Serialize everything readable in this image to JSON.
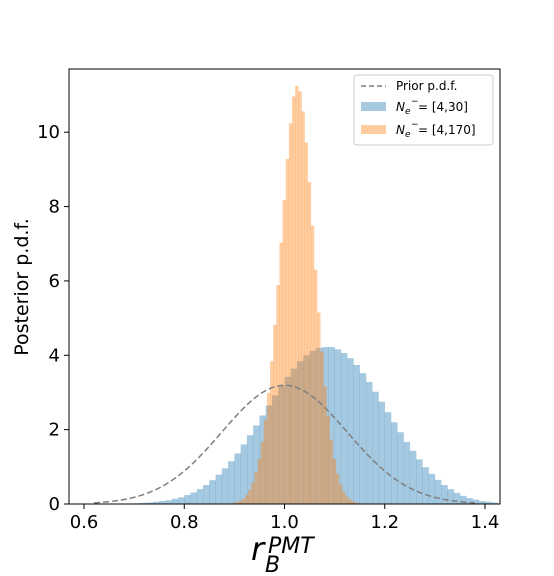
{
  "chart_data": {
    "type": "histogram",
    "xlabel": "r_B^PMT",
    "xlabel_main": "r",
    "xlabel_sub": "B",
    "xlabel_sup": "PMT",
    "ylabel": "Posterior p.d.f.",
    "xlim": [
      0.57,
      1.43
    ],
    "ylim": [
      0,
      11.7
    ],
    "xticks": [
      0.6,
      0.8,
      1.0,
      1.2,
      1.4
    ],
    "xtick_labels": [
      "0.6",
      "0.8",
      "1.0",
      "1.2",
      "1.4"
    ],
    "yticks": [
      0,
      2,
      4,
      6,
      8,
      10
    ],
    "ytick_labels": [
      "0",
      "2",
      "4",
      "6",
      "8",
      "10"
    ],
    "grid": false,
    "legend_placement": "top-right",
    "legend": {
      "prior_label": "Prior p.d.f.",
      "series_a_prefix": "N",
      "series_a_sub": "e",
      "series_a_sup": "−",
      "series_a_range": " = [4,30]",
      "series_b_prefix": "N",
      "series_b_sub": "e",
      "series_b_sup": "−",
      "series_b_range": " = [4,170]"
    },
    "series": [
      {
        "name": "N_e- = [4,30]",
        "kind": "histogram",
        "color": "#1f77b4",
        "opacity": 0.4,
        "bin_width": 0.0125,
        "bin_start": 0.7,
        "values": [
          0.02,
          0.03,
          0.04,
          0.06,
          0.08,
          0.1,
          0.14,
          0.18,
          0.24,
          0.31,
          0.4,
          0.51,
          0.64,
          0.79,
          0.96,
          1.15,
          1.36,
          1.6,
          1.85,
          2.11,
          2.38,
          2.65,
          2.92,
          3.18,
          3.42,
          3.64,
          3.84,
          4.0,
          4.12,
          4.2,
          4.22,
          4.22,
          4.16,
          4.06,
          3.92,
          3.74,
          3.52,
          3.28,
          3.02,
          2.75,
          2.47,
          2.2,
          1.93,
          1.67,
          1.43,
          1.2,
          0.99,
          0.81,
          0.65,
          0.51,
          0.4,
          0.3,
          0.22,
          0.16,
          0.12,
          0.08,
          0.06,
          0.04
        ]
      },
      {
        "name": "N_e- = [4,170]",
        "kind": "histogram",
        "color": "#ff7f0e",
        "opacity": 0.4,
        "bin_width": 0.00625,
        "bin_start": 0.89,
        "values": [
          0.02,
          0.03,
          0.05,
          0.09,
          0.15,
          0.24,
          0.38,
          0.58,
          0.85,
          1.21,
          1.68,
          2.27,
          2.99,
          3.84,
          4.82,
          5.89,
          7.03,
          8.18,
          9.28,
          10.24,
          10.96,
          11.25,
          11.1,
          10.56,
          9.72,
          8.66,
          7.49,
          6.3,
          5.15,
          4.1,
          3.17,
          2.38,
          1.73,
          1.21,
          0.82,
          0.53,
          0.33,
          0.2,
          0.12,
          0.07,
          0.04,
          0.02
        ]
      },
      {
        "name": "Prior p.d.f.",
        "kind": "line",
        "style": "dashed",
        "color": "#7f7f7f",
        "mean": 1.0,
        "sigma": 0.125,
        "x_range": [
          0.62,
          1.38
        ]
      }
    ]
  }
}
